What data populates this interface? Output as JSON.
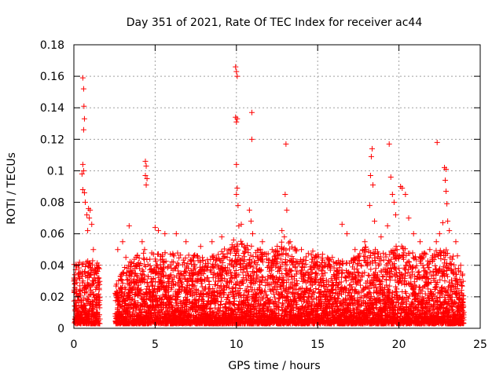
{
  "chart_data": {
    "type": "scatter",
    "title": "Day 351 of 2021, Rate Of TEC Index for receiver ac44",
    "xlabel": "GPS time / hours",
    "ylabel": "ROTI / TECUs",
    "xlim": [
      0,
      25
    ],
    "ylim": [
      0,
      0.18
    ],
    "xticks": [
      0,
      5,
      10,
      15,
      20,
      25
    ],
    "xtick_labels": [
      "0",
      "5",
      "10",
      "15",
      "20",
      "25"
    ],
    "yticks": [
      0,
      0.02,
      0.04,
      0.06,
      0.08,
      0.1,
      0.12,
      0.14,
      0.16,
      0.18
    ],
    "ytick_labels": [
      "0",
      "0.02",
      "0.04",
      "0.06",
      "0.08",
      "0.1",
      "0.12",
      "0.14",
      "0.16",
      "0.18"
    ],
    "grid": true,
    "marker": "+",
    "color": "#ff0000",
    "series": [
      {
        "name": "ROTI",
        "points": [
          [
            0.55,
            0.159
          ],
          [
            0.6,
            0.152
          ],
          [
            0.62,
            0.141
          ],
          [
            0.65,
            0.133
          ],
          [
            0.6,
            0.126
          ],
          [
            0.55,
            0.104
          ],
          [
            0.6,
            0.1
          ],
          [
            0.5,
            0.098
          ],
          [
            0.55,
            0.088
          ],
          [
            0.65,
            0.086
          ],
          [
            0.7,
            0.08
          ],
          [
            0.9,
            0.076
          ],
          [
            1.0,
            0.075
          ],
          [
            0.8,
            0.072
          ],
          [
            0.95,
            0.07
          ],
          [
            1.1,
            0.066
          ],
          [
            0.85,
            0.062
          ],
          [
            1.2,
            0.05
          ],
          [
            1.4,
            0.04
          ],
          [
            1.5,
            0.038
          ],
          [
            4.4,
            0.106
          ],
          [
            4.45,
            0.103
          ],
          [
            4.4,
            0.097
          ],
          [
            4.5,
            0.095
          ],
          [
            4.45,
            0.091
          ],
          [
            4.2,
            0.055
          ],
          [
            4.35,
            0.05
          ],
          [
            5.0,
            0.064
          ],
          [
            5.2,
            0.062
          ],
          [
            5.6,
            0.06
          ],
          [
            3.4,
            0.065
          ],
          [
            3.0,
            0.055
          ],
          [
            2.7,
            0.05
          ],
          [
            3.2,
            0.045
          ],
          [
            6.3,
            0.06
          ],
          [
            6.9,
            0.055
          ],
          [
            7.8,
            0.052
          ],
          [
            8.5,
            0.055
          ],
          [
            9.1,
            0.058
          ],
          [
            9.6,
            0.05
          ],
          [
            9.95,
            0.166
          ],
          [
            10.0,
            0.163
          ],
          [
            10.05,
            0.16
          ],
          [
            9.95,
            0.134
          ],
          [
            10.0,
            0.131
          ],
          [
            10.05,
            0.133
          ],
          [
            10.0,
            0.104
          ],
          [
            10.05,
            0.089
          ],
          [
            10.0,
            0.085
          ],
          [
            10.1,
            0.078
          ],
          [
            10.15,
            0.065
          ],
          [
            10.3,
            0.066
          ],
          [
            10.8,
            0.075
          ],
          [
            10.95,
            0.137
          ],
          [
            10.95,
            0.12
          ],
          [
            10.9,
            0.068
          ],
          [
            11.0,
            0.06
          ],
          [
            11.6,
            0.055
          ],
          [
            12.2,
            0.05
          ],
          [
            12.8,
            0.062
          ],
          [
            12.95,
            0.058
          ],
          [
            13.05,
            0.117
          ],
          [
            13.0,
            0.085
          ],
          [
            13.1,
            0.075
          ],
          [
            13.3,
            0.055
          ],
          [
            14.0,
            0.05
          ],
          [
            14.7,
            0.049
          ],
          [
            15.3,
            0.047
          ],
          [
            15.9,
            0.045
          ],
          [
            16.5,
            0.066
          ],
          [
            16.8,
            0.06
          ],
          [
            17.3,
            0.05
          ],
          [
            17.9,
            0.055
          ],
          [
            18.2,
            0.078
          ],
          [
            18.35,
            0.114
          ],
          [
            18.3,
            0.109
          ],
          [
            18.25,
            0.097
          ],
          [
            18.4,
            0.091
          ],
          [
            18.5,
            0.068
          ],
          [
            18.9,
            0.058
          ],
          [
            19.3,
            0.065
          ],
          [
            19.4,
            0.117
          ],
          [
            19.5,
            0.096
          ],
          [
            19.6,
            0.085
          ],
          [
            19.7,
            0.08
          ],
          [
            19.8,
            0.072
          ],
          [
            20.1,
            0.09
          ],
          [
            20.2,
            0.089
          ],
          [
            20.4,
            0.085
          ],
          [
            20.6,
            0.07
          ],
          [
            20.9,
            0.06
          ],
          [
            21.3,
            0.055
          ],
          [
            21.9,
            0.05
          ],
          [
            22.3,
            0.055
          ],
          [
            22.35,
            0.118
          ],
          [
            22.5,
            0.06
          ],
          [
            22.7,
            0.067
          ],
          [
            22.8,
            0.102
          ],
          [
            22.9,
            0.101
          ],
          [
            22.85,
            0.094
          ],
          [
            22.9,
            0.087
          ],
          [
            22.95,
            0.079
          ],
          [
            23.0,
            0.068
          ],
          [
            23.1,
            0.062
          ],
          [
            23.5,
            0.055
          ],
          [
            23.6,
            0.046
          ],
          [
            23.8,
            0.04
          ]
        ],
        "dense_envelope": {
          "description": "bulk of observations between 0.002 and the upper envelope",
          "hours": [
            0,
            1.5,
            2.6,
            3.0,
            4.0,
            5.0,
            6.0,
            7.0,
            8.0,
            9.0,
            10.0,
            11.0,
            12.0,
            13.0,
            14.0,
            15.0,
            16.0,
            17.0,
            18.0,
            19.0,
            20.0,
            21.0,
            22.0,
            23.0,
            24.0
          ],
          "upper": [
            0.04,
            0.04,
            0.025,
            0.035,
            0.045,
            0.045,
            0.045,
            0.045,
            0.042,
            0.045,
            0.055,
            0.05,
            0.045,
            0.055,
            0.045,
            0.045,
            0.04,
            0.04,
            0.05,
            0.045,
            0.05,
            0.045,
            0.045,
            0.05,
            0.03
          ]
        }
      }
    ]
  }
}
